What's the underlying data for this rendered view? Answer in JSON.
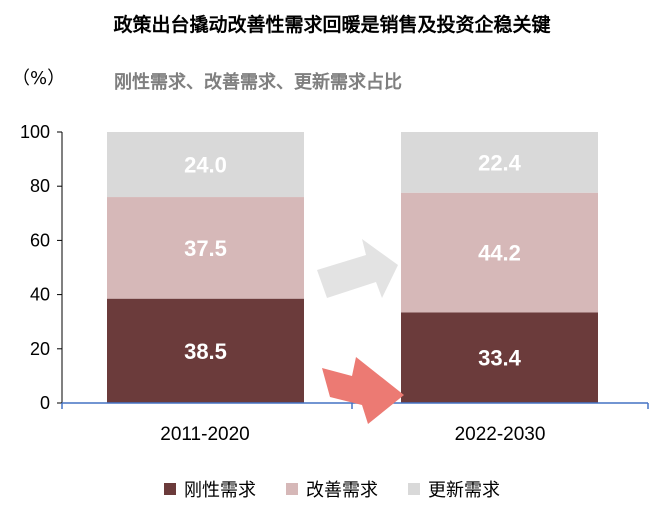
{
  "title": "政策出台撬动改善性需求回暖是销售及投资企稳关键",
  "unit_label": "（%）",
  "subtitle": "刚性需求、改善需求、更新需求占比",
  "chart_data": {
    "type": "bar",
    "stacked": true,
    "categories": [
      "2011-2020",
      "2022-2030"
    ],
    "series": [
      {
        "name": "刚性需求",
        "values": [
          38.5,
          33.4
        ],
        "color": "#6b3b3b",
        "label_color": "#ffffff"
      },
      {
        "name": "改善需求",
        "values": [
          37.5,
          44.2
        ],
        "color": "#d6b8b8",
        "label_color": "#ffffff"
      },
      {
        "name": "更新需求",
        "values": [
          24.0,
          22.4
        ],
        "color": "#d9d9d9",
        "label_color": "#ffffff"
      }
    ],
    "ylim": [
      0,
      100
    ],
    "yticks": [
      0,
      20,
      40,
      60,
      80,
      100
    ],
    "legend_position": "bottom",
    "grid": false,
    "arrows": [
      "gray-arrow",
      "red-arrow"
    ]
  }
}
